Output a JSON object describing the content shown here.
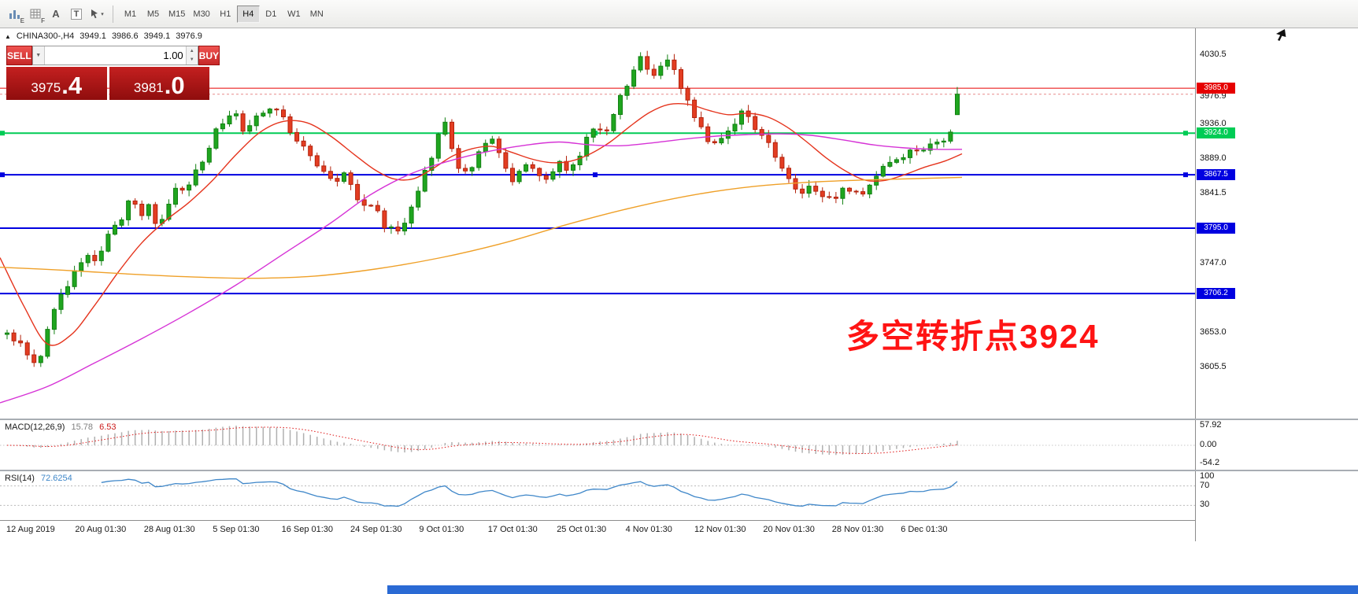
{
  "window": {
    "title": "CHINA300-,H4"
  },
  "toolbar": {
    "tools": [
      {
        "id": "chart-tool-e",
        "label": "E"
      },
      {
        "id": "grid-tool-f",
        "label": "F"
      },
      {
        "id": "text-tool",
        "label": "A"
      },
      {
        "id": "label-tool",
        "label": "T"
      },
      {
        "id": "cursor-tool",
        "label": "▾"
      }
    ],
    "timeframes": [
      {
        "label": "M1"
      },
      {
        "label": "M5"
      },
      {
        "label": "M15"
      },
      {
        "label": "M30"
      },
      {
        "label": "H1"
      },
      {
        "label": "H4"
      },
      {
        "label": "D1"
      },
      {
        "label": "W1"
      },
      {
        "label": "MN"
      }
    ],
    "active_timeframe": "H4"
  },
  "chart": {
    "symbol_info": {
      "arrow": "▲",
      "title": "CHINA300-,H4",
      "open": "3949.1",
      "high": "3986.6",
      "low": "3949.1",
      "close": "3976.9"
    },
    "trade_panel": {
      "sell_label": "SELL",
      "buy_label": "BUY",
      "volume": "1.00",
      "sell_price_main": "3975",
      "sell_price_frac": ".4",
      "buy_price_main": "3981",
      "buy_price_frac": ".0",
      "dropdown_glyph": "▼",
      "spin_up": "▲",
      "spin_down": "▼"
    },
    "annotation": {
      "text": "多空转折点3924",
      "color": "#ff1414"
    }
  },
  "chart_data": {
    "type": "candlestick",
    "symbol": "CHINA300-",
    "timeframe": "H4",
    "last_candle": {
      "open": 3949.1,
      "high": 3986.6,
      "low": 3949.1,
      "close": 3976.9
    },
    "candle_colors": {
      "up_fill": "#1fa51f",
      "up_stroke": "#128012",
      "down_fill": "#e33d22",
      "down_stroke": "#b3220c"
    },
    "price_axis": {
      "ticks": [
        {
          "label": "4030.5",
          "price": 4030.5
        },
        {
          "label": "3936.0",
          "price": 3936.0
        },
        {
          "label": "3889.0",
          "price": 3889.0
        },
        {
          "label": "3841.5",
          "price": 3841.5
        },
        {
          "label": "3747.0",
          "price": 3747.0
        },
        {
          "label": "3653.0",
          "price": 3653.0
        },
        {
          "label": "3605.5",
          "price": 3605.5
        }
      ],
      "current_price": {
        "label": "3976.9",
        "price": 3976.9
      }
    },
    "levels": [
      {
        "price": 3985.0,
        "label": "3985.0",
        "color": "#e60000",
        "width": 1,
        "style": "solid",
        "badge": true,
        "handles": false
      },
      {
        "price": 3976.9,
        "label": "",
        "color": "#e88a8a",
        "width": 1,
        "style": "dash",
        "badge": false,
        "handles": false
      },
      {
        "price": 3924.0,
        "label": "3924.0",
        "color": "#00cc55",
        "width": 2,
        "style": "solid",
        "badge": true,
        "handles": true
      },
      {
        "price": 3867.5,
        "label": "3867.5",
        "color": "#0000e0",
        "width": 2,
        "style": "solid",
        "badge": true,
        "handles": true
      },
      {
        "price": 3795.0,
        "label": "3795.0",
        "color": "#0000e0",
        "width": 2,
        "style": "solid",
        "badge": true,
        "handles": false
      },
      {
        "price": 3706.2,
        "label": "3706.2",
        "color": "#0000e0",
        "width": 2,
        "style": "solid",
        "badge": true,
        "handles": false
      }
    ],
    "price_path": [
      [
        8,
        3658
      ],
      [
        22,
        3640
      ],
      [
        36,
        3622
      ],
      [
        48,
        3606
      ],
      [
        58,
        3648
      ],
      [
        70,
        3688
      ],
      [
        82,
        3715
      ],
      [
        95,
        3738
      ],
      [
        108,
        3758
      ],
      [
        118,
        3742
      ],
      [
        130,
        3772
      ],
      [
        142,
        3795
      ],
      [
        155,
        3812
      ],
      [
        166,
        3846
      ],
      [
        176,
        3805
      ],
      [
        190,
        3822
      ],
      [
        203,
        3792
      ],
      [
        216,
        3836
      ],
      [
        230,
        3852
      ],
      [
        244,
        3858
      ],
      [
        258,
        3886
      ],
      [
        272,
        3922
      ],
      [
        286,
        3942
      ],
      [
        298,
        3952
      ],
      [
        310,
        3930
      ],
      [
        324,
        3944
      ],
      [
        338,
        3950
      ],
      [
        352,
        3960
      ],
      [
        364,
        3938
      ],
      [
        378,
        3912
      ],
      [
        392,
        3892
      ],
      [
        406,
        3872
      ],
      [
        420,
        3856
      ],
      [
        434,
        3868
      ],
      [
        448,
        3846
      ],
      [
        462,
        3830
      ],
      [
        476,
        3820
      ],
      [
        490,
        3800
      ],
      [
        502,
        3788
      ],
      [
        514,
        3802
      ],
      [
        526,
        3836
      ],
      [
        540,
        3868
      ],
      [
        552,
        3898
      ],
      [
        563,
        3948
      ],
      [
        574,
        3898
      ],
      [
        586,
        3862
      ],
      [
        600,
        3880
      ],
      [
        614,
        3904
      ],
      [
        628,
        3922
      ],
      [
        642,
        3876
      ],
      [
        655,
        3860
      ],
      [
        669,
        3880
      ],
      [
        683,
        3868
      ],
      [
        697,
        3864
      ],
      [
        711,
        3880
      ],
      [
        725,
        3868
      ],
      [
        739,
        3896
      ],
      [
        753,
        3936
      ],
      [
        767,
        3918
      ],
      [
        781,
        3958
      ],
      [
        795,
        3986
      ],
      [
        808,
        4016
      ],
      [
        817,
        4032
      ],
      [
        827,
        4002
      ],
      [
        838,
        4010
      ],
      [
        849,
        4020
      ],
      [
        861,
        3996
      ],
      [
        875,
        3962
      ],
      [
        889,
        3932
      ],
      [
        903,
        3912
      ],
      [
        917,
        3924
      ],
      [
        931,
        3934
      ],
      [
        945,
        3958
      ],
      [
        959,
        3932
      ],
      [
        973,
        3912
      ],
      [
        987,
        3892
      ],
      [
        1001,
        3862
      ],
      [
        1015,
        3844
      ],
      [
        1029,
        3858
      ],
      [
        1043,
        3846
      ],
      [
        1057,
        3830
      ],
      [
        1071,
        3850
      ],
      [
        1085,
        3842
      ],
      [
        1099,
        3838
      ],
      [
        1113,
        3868
      ],
      [
        1127,
        3878
      ],
      [
        1141,
        3892
      ],
      [
        1155,
        3898
      ],
      [
        1169,
        3908
      ],
      [
        1183,
        3904
      ],
      [
        1197,
        3908
      ],
      [
        1207,
        3924
      ],
      [
        1216,
        3950
      ]
    ],
    "ma_lines": [
      {
        "name": "ma-fast-red",
        "color": "#e5341d",
        "points": [
          [
            0,
            3755
          ],
          [
            30,
            3690
          ],
          [
            60,
            3638
          ],
          [
            90,
            3650
          ],
          [
            120,
            3690
          ],
          [
            150,
            3735
          ],
          [
            180,
            3775
          ],
          [
            210,
            3805
          ],
          [
            240,
            3830
          ],
          [
            270,
            3860
          ],
          [
            300,
            3895
          ],
          [
            330,
            3925
          ],
          [
            360,
            3940
          ],
          [
            390,
            3938
          ],
          [
            420,
            3920
          ],
          [
            450,
            3895
          ],
          [
            475,
            3875
          ],
          [
            500,
            3862
          ],
          [
            525,
            3862
          ],
          [
            550,
            3876
          ],
          [
            575,
            3893
          ],
          [
            600,
            3903
          ],
          [
            625,
            3906
          ],
          [
            650,
            3898
          ],
          [
            675,
            3889
          ],
          [
            700,
            3884
          ],
          [
            725,
            3886
          ],
          [
            750,
            3896
          ],
          [
            775,
            3912
          ],
          [
            800,
            3933
          ],
          [
            825,
            3952
          ],
          [
            850,
            3963
          ],
          [
            875,
            3963
          ],
          [
            900,
            3955
          ],
          [
            925,
            3949
          ],
          [
            950,
            3951
          ],
          [
            975,
            3946
          ],
          [
            1000,
            3932
          ],
          [
            1025,
            3912
          ],
          [
            1050,
            3890
          ],
          [
            1075,
            3872
          ],
          [
            1100,
            3860
          ],
          [
            1125,
            3860
          ],
          [
            1150,
            3868
          ],
          [
            1175,
            3878
          ],
          [
            1200,
            3886
          ],
          [
            1222,
            3896
          ]
        ]
      },
      {
        "name": "ma-mid-magenta",
        "color": "#d633d6",
        "points": [
          [
            0,
            3558
          ],
          [
            60,
            3580
          ],
          [
            120,
            3612
          ],
          [
            180,
            3645
          ],
          [
            240,
            3680
          ],
          [
            300,
            3718
          ],
          [
            360,
            3760
          ],
          [
            420,
            3802
          ],
          [
            470,
            3840
          ],
          [
            520,
            3868
          ],
          [
            570,
            3886
          ],
          [
            620,
            3899
          ],
          [
            670,
            3908
          ],
          [
            710,
            3912
          ],
          [
            750,
            3908
          ],
          [
            790,
            3907
          ],
          [
            830,
            3911
          ],
          [
            870,
            3916
          ],
          [
            910,
            3920
          ],
          [
            950,
            3922
          ],
          [
            990,
            3923
          ],
          [
            1030,
            3921
          ],
          [
            1070,
            3915
          ],
          [
            1110,
            3908
          ],
          [
            1150,
            3904
          ],
          [
            1190,
            3902
          ],
          [
            1222,
            3902
          ]
        ]
      },
      {
        "name": "ma-slow-orange",
        "color": "#efa028",
        "points": [
          [
            0,
            3742
          ],
          [
            80,
            3738
          ],
          [
            160,
            3733
          ],
          [
            240,
            3729
          ],
          [
            320,
            3727
          ],
          [
            400,
            3730
          ],
          [
            480,
            3740
          ],
          [
            560,
            3755
          ],
          [
            640,
            3775
          ],
          [
            720,
            3800
          ],
          [
            800,
            3822
          ],
          [
            880,
            3840
          ],
          [
            960,
            3852
          ],
          [
            1040,
            3858
          ],
          [
            1120,
            3861
          ],
          [
            1222,
            3864
          ]
        ]
      }
    ],
    "macd": {
      "name": "MACD(12,26,9)",
      "value_main": "15.78",
      "value_signal": "6.53",
      "axis": [
        {
          "label": "57.92",
          "value": 57.92
        },
        {
          "label": "0.00",
          "value": 0
        },
        {
          "label": "-54.2",
          "value": -54.2
        }
      ],
      "bar_color": "#b0b0b0",
      "signal_color": "#e01818"
    },
    "rsi": {
      "name": "RSI(14)",
      "value": "72.6254",
      "color": "#3f87c9",
      "axis": [
        {
          "label": "100",
          "value": 100
        },
        {
          "label": "70",
          "value": 70
        },
        {
          "label": "30",
          "value": 30
        }
      ],
      "levels": [
        70,
        30
      ]
    },
    "time_labels": [
      "12 Aug 2019",
      "20 Aug 01:30",
      "28 Aug 01:30",
      "5 Sep 01:30",
      "16 Sep 01:30",
      "24 Sep 01:30",
      "9 Oct 01:30",
      "17 Oct 01:30",
      "25 Oct 01:30",
      "4 Nov 01:30",
      "12 Nov 01:30",
      "20 Nov 01:30",
      "28 Nov 01:30",
      "6 Dec 01:30"
    ]
  }
}
